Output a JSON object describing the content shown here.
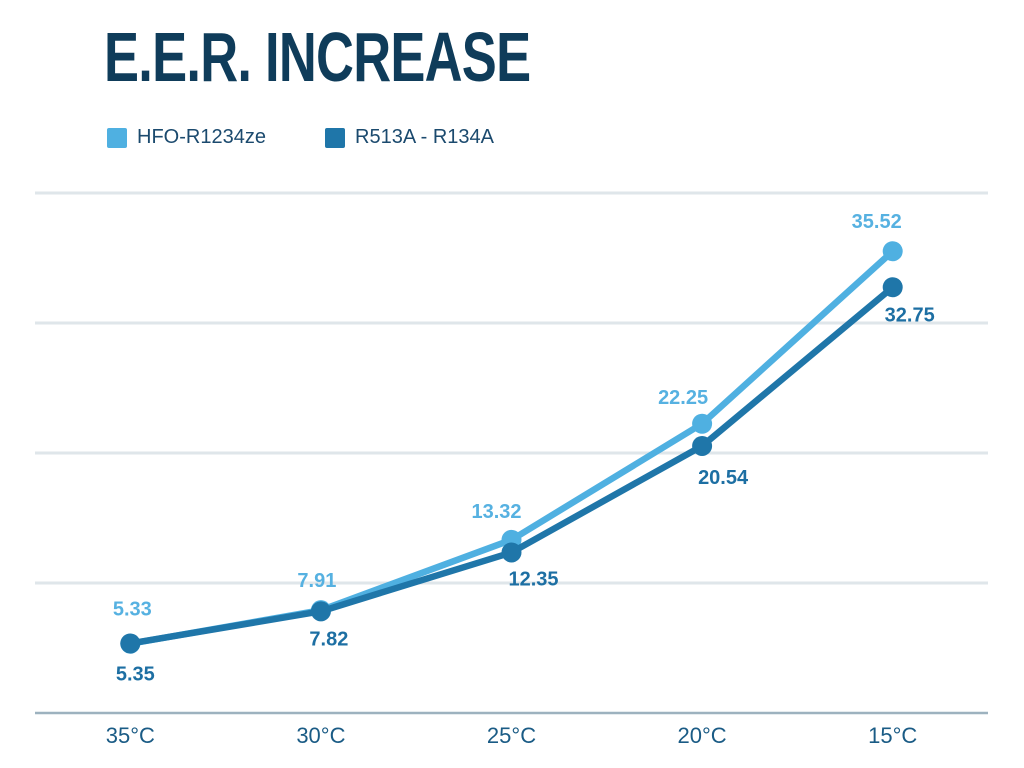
{
  "title": "E.E.R. INCREASE",
  "colors": {
    "background": "#ffffff",
    "title_text": "#0f3c5a",
    "legend_text": "#1b4a6e",
    "gridline": "#dfe6ea",
    "axis_line": "#9db2bf",
    "x_tick_labels": "#1a5b85"
  },
  "chart_data": {
    "type": "line",
    "title": "E.E.R. INCREASE",
    "categories": [
      "35°C",
      "30°C",
      "25°C",
      "20°C",
      "15°C"
    ],
    "series": [
      {
        "name": "HFO-R1234ze",
        "color": "#4fb0e1",
        "label_color": "#56b1e1",
        "values": [
          5.33,
          7.91,
          13.32,
          22.25,
          35.52
        ],
        "data_labels": [
          "5.33",
          "7.91",
          "13.32",
          "22.25",
          "35.52"
        ],
        "label_placement": "above"
      },
      {
        "name": "R513A - R134A",
        "color": "#1f76a9",
        "label_color": "#1d6fa3",
        "values": [
          5.35,
          7.82,
          12.35,
          20.54,
          32.75
        ],
        "data_labels": [
          "5.35",
          "7.82",
          "12.35",
          "20.54",
          "32.75"
        ],
        "label_placement": "below"
      }
    ],
    "xlabel": "",
    "ylabel": "",
    "ylim": [
      0,
      40
    ],
    "grid_step": 10,
    "grid": true,
    "y_tick_labels_visible": false,
    "legend_position": "top-left",
    "data_labels_visible": true,
    "marker": "circle"
  }
}
